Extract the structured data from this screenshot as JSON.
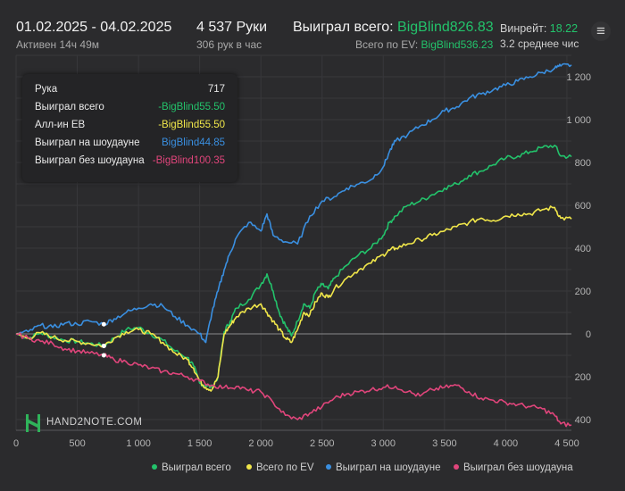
{
  "header": {
    "date_range": "01.02.2025 - 04.02.2025",
    "active": "Активен 14ч 49м",
    "hands": "4 537 Руки",
    "hands_per_hour": "306 рук в час",
    "won_label": "Выиграл всего:",
    "won_value": "BigBlind826.83",
    "ev_label": "Всего по EV:",
    "ev_value": "BigBlind536.23",
    "winrate_label": "Винрейт:",
    "winrate_value": "18.22",
    "avg_text": "3.2 среднее чис"
  },
  "tooltip": {
    "rows": [
      {
        "label": "Рука",
        "value": "717",
        "color": "#e6e6e6"
      },
      {
        "label": "Выиграл всего",
        "value": "-BigBlind55.50",
        "color": "#23c36b"
      },
      {
        "label": "Алл-ин ЕВ",
        "value": "-BigBlind55.50",
        "color": "#f0e64a"
      },
      {
        "label": "Выиграл на шоудауне",
        "value": "BigBlind44.85",
        "color": "#3a8fe0"
      },
      {
        "label": "Выиграл без шоудауна",
        "value": "-BigBlind100.35",
        "color": "#e0457b"
      }
    ]
  },
  "logo": {
    "text": "HAND2NOTE.COM"
  },
  "menu_icon": "hamburger-menu-icon",
  "chart_data": {
    "type": "line",
    "xlabel": "",
    "ylabel": "",
    "xlim": [
      0,
      4537
    ],
    "ylim": [
      -450,
      1300
    ],
    "x_ticks": [
      0,
      500,
      1000,
      1500,
      2000,
      2500,
      3000,
      3500,
      4000,
      4500
    ],
    "x_tick_labels": [
      "0",
      "500",
      "1 000",
      "1 500",
      "2 000",
      "2 500",
      "3 000",
      "3 500",
      "4 000",
      "4 500"
    ],
    "y_ticks": [
      -400,
      -200,
      0,
      200,
      400,
      600,
      800,
      1000,
      1200
    ],
    "y_tick_labels": [
      "400",
      "200",
      "0",
      "200",
      "400",
      "600",
      "800",
      "1 000",
      "1 200"
    ],
    "grid": true,
    "legend_position": "bottom-right",
    "hover_x": 717,
    "series": [
      {
        "name": "Выиграл всего",
        "color": "#23c36b",
        "x": [
          0,
          100,
          200,
          300,
          400,
          500,
          600,
          717,
          800,
          900,
          1000,
          1100,
          1200,
          1300,
          1400,
          1450,
          1500,
          1550,
          1600,
          1650,
          1700,
          1750,
          1800,
          1900,
          2000,
          2050,
          2100,
          2150,
          2200,
          2250,
          2300,
          2350,
          2400,
          2450,
          2500,
          2550,
          2600,
          2700,
          2800,
          2900,
          3000,
          3050,
          3100,
          3200,
          3300,
          3400,
          3500,
          3600,
          3700,
          3800,
          3900,
          4000,
          4100,
          4200,
          4300,
          4400,
          4450,
          4537
        ],
        "values": [
          0,
          -20,
          5,
          -15,
          -30,
          -35,
          -45,
          -56,
          -20,
          20,
          30,
          0,
          -30,
          -80,
          -110,
          -150,
          -230,
          -240,
          -250,
          -200,
          10,
          60,
          120,
          160,
          230,
          280,
          200,
          100,
          40,
          -10,
          60,
          140,
          120,
          200,
          230,
          210,
          260,
          320,
          370,
          400,
          460,
          520,
          550,
          600,
          620,
          650,
          680,
          700,
          740,
          760,
          790,
          820,
          830,
          850,
          870,
          880,
          830,
          826.83
        ]
      },
      {
        "name": "Всего по EV",
        "color": "#f0e64a",
        "x": [
          0,
          100,
          200,
          300,
          400,
          500,
          600,
          717,
          800,
          900,
          1000,
          1100,
          1200,
          1300,
          1400,
          1450,
          1500,
          1550,
          1600,
          1650,
          1700,
          1750,
          1800,
          1900,
          2000,
          2050,
          2100,
          2150,
          2200,
          2250,
          2300,
          2350,
          2400,
          2450,
          2500,
          2550,
          2600,
          2700,
          2800,
          2900,
          3000,
          3050,
          3100,
          3200,
          3300,
          3400,
          3500,
          3600,
          3700,
          3800,
          3900,
          4000,
          4100,
          4200,
          4300,
          4400,
          4450,
          4537
        ],
        "values": [
          0,
          -20,
          5,
          -15,
          -30,
          -35,
          -45,
          -56,
          -20,
          10,
          20,
          0,
          -40,
          -90,
          -120,
          -160,
          -220,
          -250,
          -260,
          -200,
          0,
          40,
          80,
          120,
          140,
          100,
          60,
          20,
          -20,
          -40,
          20,
          100,
          90,
          150,
          190,
          170,
          210,
          260,
          300,
          330,
          370,
          390,
          400,
          420,
          440,
          460,
          480,
          500,
          520,
          540,
          530,
          550,
          560,
          560,
          580,
          590,
          540,
          536.23
        ]
      },
      {
        "name": "Выиграл на шоудауне",
        "color": "#3a8fe0",
        "x": [
          0,
          100,
          200,
          300,
          400,
          500,
          600,
          717,
          800,
          900,
          1000,
          1100,
          1200,
          1300,
          1400,
          1500,
          1550,
          1600,
          1650,
          1700,
          1750,
          1800,
          1900,
          2000,
          2050,
          2100,
          2200,
          2300,
          2400,
          2500,
          2600,
          2700,
          2800,
          2900,
          3000,
          3050,
          3100,
          3200,
          3300,
          3400,
          3500,
          3600,
          3700,
          3800,
          3900,
          4000,
          4100,
          4200,
          4300,
          4400,
          4450,
          4537
        ],
        "values": [
          0,
          10,
          40,
          30,
          50,
          45,
          60,
          45,
          70,
          100,
          120,
          140,
          130,
          80,
          40,
          0,
          -40,
          100,
          200,
          300,
          380,
          450,
          520,
          480,
          560,
          460,
          430,
          420,
          550,
          620,
          640,
          680,
          700,
          720,
          780,
          850,
          900,
          930,
          970,
          1000,
          1040,
          1060,
          1100,
          1120,
          1140,
          1160,
          1180,
          1200,
          1220,
          1240,
          1250,
          1255
        ]
      },
      {
        "name": "Выиграл без шоудауна",
        "color": "#e0457b",
        "x": [
          0,
          100,
          200,
          300,
          400,
          500,
          600,
          717,
          800,
          900,
          1000,
          1100,
          1200,
          1300,
          1400,
          1500,
          1600,
          1700,
          1800,
          1900,
          2000,
          2100,
          2200,
          2300,
          2400,
          2500,
          2600,
          2700,
          2800,
          2900,
          3000,
          3100,
          3200,
          3300,
          3400,
          3500,
          3600,
          3700,
          3800,
          3900,
          4000,
          4100,
          4200,
          4300,
          4400,
          4450,
          4537
        ],
        "values": [
          0,
          -20,
          -35,
          -45,
          -70,
          -80,
          -90,
          -100,
          -120,
          -130,
          -145,
          -160,
          -175,
          -185,
          -200,
          -220,
          -240,
          -250,
          -245,
          -265,
          -270,
          -320,
          -380,
          -400,
          -370,
          -340,
          -300,
          -280,
          -270,
          -260,
          -250,
          -245,
          -270,
          -290,
          -260,
          -250,
          -240,
          -270,
          -300,
          -310,
          -320,
          -330,
          -340,
          -350,
          -380,
          -420,
          -425
        ]
      }
    ]
  }
}
